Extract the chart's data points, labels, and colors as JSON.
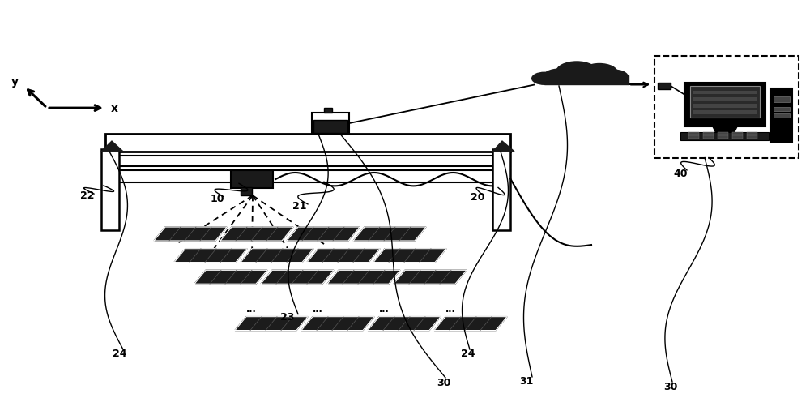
{
  "bg_color": "#ffffff",
  "line_color": "#000000",
  "dark_color": "#1a1a1a",
  "gray_color": "#555555",
  "panel_color": "#2a2a2a"
}
